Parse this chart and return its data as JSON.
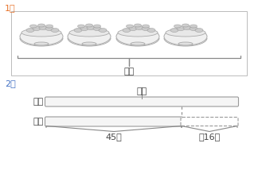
{
  "question1_label": "1．",
  "question2_label": "2．",
  "brace_label": "？颗",
  "bar_question_label": "？本",
  "jia_label": "甲：",
  "yi_label": "乙：",
  "yi_solid_label": "45本",
  "yi_dashed_label": "少16本",
  "background_color": "#ffffff",
  "text_color": "#444444",
  "num1_color": "#e8732a",
  "num2_color": "#4472c4",
  "line_color": "#888888",
  "box_edge_color": "#bbbbbb",
  "bar_edge_color": "#999999",
  "bar_face_color": "#f5f5f5"
}
